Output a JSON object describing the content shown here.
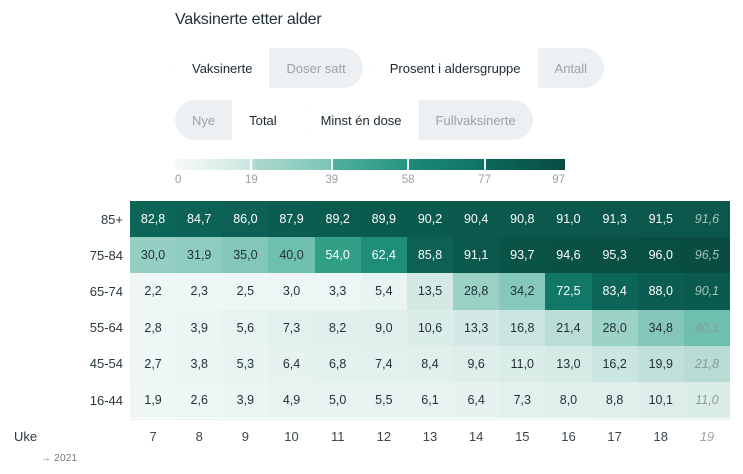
{
  "header": {
    "title": "Vaksinerte etter alder"
  },
  "controls": {
    "toggles": [
      {
        "id": "metric",
        "options": [
          "Vaksinerte",
          "Doser satt"
        ],
        "selected_index": 0,
        "row": 1
      },
      {
        "id": "unit",
        "options": [
          "Prosent i aldersgruppe",
          "Antall"
        ],
        "selected_index": 0,
        "row": 1
      },
      {
        "id": "period",
        "options": [
          "Nye",
          "Total"
        ],
        "selected_index": 1,
        "row": 2
      },
      {
        "id": "dose",
        "options": [
          "Minst én dose",
          "Fullvaksinerte"
        ],
        "selected_index": 0,
        "row": 2
      }
    ]
  },
  "legend": {
    "min": 0,
    "max": 97,
    "tick_values": [
      0,
      19,
      39,
      58,
      77,
      97
    ],
    "tick_labels": [
      "0",
      "19",
      "39",
      "58",
      "77",
      "97"
    ],
    "gradient_stops": [
      [
        0,
        "#f6fbfa"
      ],
      [
        19.5,
        "#cbe5df"
      ],
      [
        20.5,
        "#abd8cf"
      ],
      [
        39.5,
        "#7ec5b7"
      ],
      [
        40.5,
        "#51b09e"
      ],
      [
        59.5,
        "#259480"
      ],
      [
        60.5,
        "#1b8a77"
      ],
      [
        79.3,
        "#0f7263"
      ],
      [
        80.3,
        "#0c6659"
      ],
      [
        100,
        "#084d42"
      ]
    ]
  },
  "chart_data": {
    "type": "heatmap",
    "title": "Vaksinerte etter alder",
    "x_axis_label": "Uke",
    "x": [
      "7",
      "8",
      "9",
      "10",
      "11",
      "12",
      "13",
      "14",
      "15",
      "16",
      "17",
      "18",
      "19"
    ],
    "provisional_column_index": 12,
    "value_range": [
      0,
      97
    ],
    "decimal_separator": ",",
    "rows": [
      {
        "label": "85+",
        "values": [
          82.8,
          84.7,
          86.0,
          87.9,
          89.2,
          89.9,
          90.2,
          90.4,
          90.8,
          91.0,
          91.3,
          91.5,
          91.6
        ]
      },
      {
        "label": "75-84",
        "values": [
          30.0,
          31.9,
          35.0,
          40.0,
          54.0,
          62.4,
          85.8,
          91.1,
          93.7,
          94.6,
          95.3,
          96.0,
          96.5
        ]
      },
      {
        "label": "65-74",
        "values": [
          2.2,
          2.3,
          2.5,
          3.0,
          3.3,
          5.4,
          13.5,
          28.8,
          34.2,
          72.5,
          83.4,
          88.0,
          90.1
        ]
      },
      {
        "label": "55-64",
        "values": [
          2.8,
          3.9,
          5.6,
          7.3,
          8.2,
          9.0,
          10.6,
          13.3,
          16.8,
          21.4,
          28.0,
          34.8,
          40.1
        ]
      },
      {
        "label": "45-54",
        "values": [
          2.7,
          3.8,
          5.3,
          6.4,
          6.8,
          7.4,
          8.4,
          9.6,
          11.0,
          13.0,
          16.2,
          19.9,
          21.8
        ]
      },
      {
        "label": "16-44",
        "values": [
          1.9,
          2.6,
          3.9,
          4.9,
          5.0,
          5.5,
          6.1,
          6.4,
          7.3,
          8.0,
          8.8,
          10.1,
          11.0
        ]
      }
    ],
    "color_scale": [
      [
        0,
        "#f4faf9"
      ],
      [
        10,
        "#ddeeea"
      ],
      [
        15,
        "#cfe7e2"
      ],
      [
        20,
        "#c0e0d9"
      ],
      [
        25,
        "#a9d6cc"
      ],
      [
        30,
        "#95cfc3"
      ],
      [
        35,
        "#83c7b9"
      ],
      [
        40,
        "#6ebfae"
      ],
      [
        45,
        "#55b29f"
      ],
      [
        50,
        "#3fa78f"
      ],
      [
        55,
        "#2d9c84"
      ],
      [
        60,
        "#23947f"
      ],
      [
        65,
        "#1a8772"
      ],
      [
        70,
        "#137c6b"
      ],
      [
        75,
        "#0f7263"
      ],
      [
        80,
        "#0d6a5c"
      ],
      [
        85,
        "#0c6255"
      ],
      [
        90,
        "#0b5a4e"
      ],
      [
        97,
        "#094c41"
      ]
    ],
    "text_colors": {
      "on_light": "#24313a",
      "on_dark": "#ffffff",
      "provisional_on_light": "#8d9b98",
      "provisional_on_dark": "#a3c3bc",
      "white_text_threshold": 50
    }
  },
  "footer": {
    "year_label": "→ 2021"
  }
}
